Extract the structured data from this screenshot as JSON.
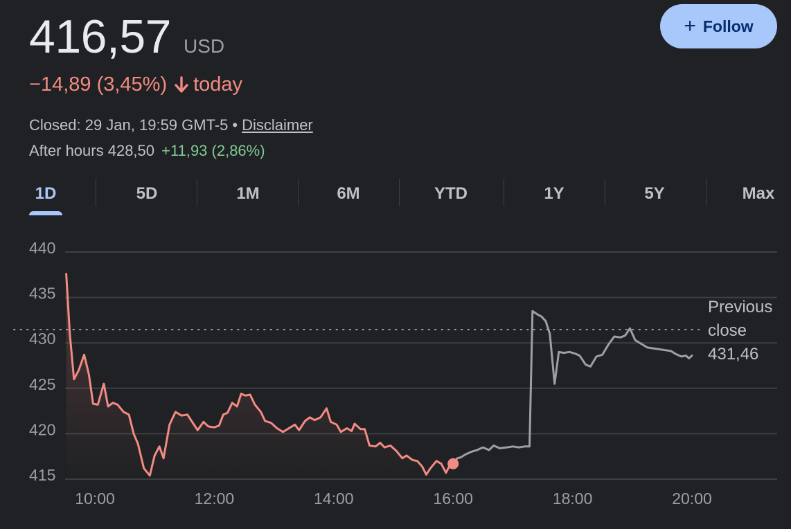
{
  "quote": {
    "price": "416,57",
    "currency": "USD",
    "change": "−14,89 (3,45%)",
    "change_suffix": "today",
    "closed": "Closed: 29 Jan, 19:59 GMT-5",
    "separator": "•",
    "disclaimer": "Disclaimer",
    "after_hours_label": "After hours 428,50",
    "after_hours_change": "+11,93 (2,86%)",
    "colors": {
      "negative": "#f28b82",
      "positive": "#81c995",
      "accent": "#a8c7fa",
      "after_hours_line": "#9aa0a6"
    }
  },
  "follow_button": {
    "label": "Follow",
    "icon": "plus-icon"
  },
  "tabs": [
    "1D",
    "5D",
    "1M",
    "6M",
    "YTD",
    "1Y",
    "5Y",
    "Max"
  ],
  "active_tab": 0,
  "chart_data": {
    "type": "line",
    "ylim": [
      415,
      440
    ],
    "y_ticks": [
      415,
      420,
      425,
      430,
      435,
      440
    ],
    "x_range_hours": [
      9.5,
      20.0
    ],
    "x_ticks": [
      {
        "value": 10,
        "label": "10:00"
      },
      {
        "value": 12,
        "label": "12:00"
      },
      {
        "value": 14,
        "label": "14:00"
      },
      {
        "value": 16,
        "label": "16:00"
      },
      {
        "value": 18,
        "label": "18:00"
      },
      {
        "value": 20,
        "label": "20:00"
      }
    ],
    "previous_close": {
      "label_line1": "Previous",
      "label_line2": "close",
      "value_label": "431,46",
      "value": 431.46
    },
    "regular_session_end": 16.0,
    "series": [
      {
        "segment": "regular",
        "color": "#f28b82",
        "points": [
          [
            9.52,
            437.6
          ],
          [
            9.58,
            431
          ],
          [
            9.65,
            426
          ],
          [
            9.73,
            427
          ],
          [
            9.82,
            428.7
          ],
          [
            9.9,
            426.5
          ],
          [
            9.97,
            423.3
          ],
          [
            10.05,
            423.2
          ],
          [
            10.15,
            425.5
          ],
          [
            10.22,
            423
          ],
          [
            10.3,
            423.4
          ],
          [
            10.38,
            423.2
          ],
          [
            10.48,
            422.4
          ],
          [
            10.57,
            422.1
          ],
          [
            10.65,
            420
          ],
          [
            10.72,
            418.9
          ],
          [
            10.82,
            416.2
          ],
          [
            10.92,
            415.4
          ],
          [
            11.0,
            417.6
          ],
          [
            11.08,
            418.6
          ],
          [
            11.15,
            417.3
          ],
          [
            11.25,
            421
          ],
          [
            11.35,
            422.4
          ],
          [
            11.45,
            422
          ],
          [
            11.55,
            422.1
          ],
          [
            11.65,
            421.1
          ],
          [
            11.72,
            420.4
          ],
          [
            11.82,
            421.3
          ],
          [
            11.9,
            420.8
          ],
          [
            12.0,
            420.7
          ],
          [
            12.08,
            420.9
          ],
          [
            12.15,
            422.1
          ],
          [
            12.22,
            422.3
          ],
          [
            12.3,
            423.4
          ],
          [
            12.38,
            423
          ],
          [
            12.45,
            424.4
          ],
          [
            12.52,
            424.2
          ],
          [
            12.6,
            424.3
          ],
          [
            12.68,
            423.2
          ],
          [
            12.78,
            422.4
          ],
          [
            12.85,
            421.4
          ],
          [
            12.95,
            421.2
          ],
          [
            13.05,
            420.6
          ],
          [
            13.15,
            420.2
          ],
          [
            13.25,
            420.6
          ],
          [
            13.35,
            421
          ],
          [
            13.42,
            420.4
          ],
          [
            13.52,
            421.4
          ],
          [
            13.6,
            421.8
          ],
          [
            13.68,
            421.5
          ],
          [
            13.78,
            421.8
          ],
          [
            13.88,
            422.8
          ],
          [
            13.95,
            421.3
          ],
          [
            14.05,
            421
          ],
          [
            14.12,
            420.2
          ],
          [
            14.22,
            420.6
          ],
          [
            14.3,
            420.3
          ],
          [
            14.35,
            421.1
          ],
          [
            14.45,
            420.5
          ],
          [
            14.52,
            420.5
          ],
          [
            14.6,
            418.7
          ],
          [
            14.7,
            418.6
          ],
          [
            14.78,
            419
          ],
          [
            14.85,
            418.5
          ],
          [
            14.95,
            418.7
          ],
          [
            15.05,
            418.1
          ],
          [
            15.15,
            417.3
          ],
          [
            15.22,
            417.6
          ],
          [
            15.32,
            417.1
          ],
          [
            15.4,
            417
          ],
          [
            15.48,
            416.4
          ],
          [
            15.55,
            415.5
          ],
          [
            15.62,
            416.2
          ],
          [
            15.72,
            417
          ],
          [
            15.8,
            416.7
          ],
          [
            15.88,
            415.7
          ],
          [
            15.95,
            416.6
          ],
          [
            16.0,
            416.7
          ]
        ]
      },
      {
        "segment": "after_hours",
        "color": "#9aa0a6",
        "points": [
          [
            16.0,
            416.7
          ],
          [
            16.07,
            417.3
          ],
          [
            16.13,
            417.4
          ],
          [
            16.2,
            417.7
          ],
          [
            16.3,
            418
          ],
          [
            16.4,
            418.2
          ],
          [
            16.5,
            418.5
          ],
          [
            16.6,
            418.2
          ],
          [
            16.68,
            418.7
          ],
          [
            16.78,
            418.4
          ],
          [
            16.9,
            418.5
          ],
          [
            17.0,
            418.6
          ],
          [
            17.1,
            418.5
          ],
          [
            17.2,
            418.6
          ],
          [
            17.28,
            418.6
          ],
          [
            17.33,
            433.5
          ],
          [
            17.42,
            433.1
          ],
          [
            17.48,
            432.9
          ],
          [
            17.55,
            432.4
          ],
          [
            17.62,
            431
          ],
          [
            17.7,
            425.5
          ],
          [
            17.77,
            429
          ],
          [
            17.85,
            428.9
          ],
          [
            17.95,
            429
          ],
          [
            18.05,
            428.8
          ],
          [
            18.12,
            428.6
          ],
          [
            18.22,
            427.6
          ],
          [
            18.3,
            427.4
          ],
          [
            18.4,
            428.5
          ],
          [
            18.5,
            428.7
          ],
          [
            18.6,
            429.8
          ],
          [
            18.7,
            430.7
          ],
          [
            18.8,
            430.6
          ],
          [
            18.88,
            430.8
          ],
          [
            18.96,
            431.6
          ],
          [
            19.05,
            430.3
          ],
          [
            19.15,
            429.9
          ],
          [
            19.25,
            429.5
          ],
          [
            19.35,
            429.4
          ],
          [
            19.45,
            429.3
          ],
          [
            19.55,
            429.2
          ],
          [
            19.65,
            429.1
          ],
          [
            19.72,
            428.8
          ],
          [
            19.82,
            428.5
          ],
          [
            19.9,
            428.6
          ],
          [
            19.95,
            428.3
          ],
          [
            20.0,
            428.6
          ]
        ]
      }
    ]
  }
}
